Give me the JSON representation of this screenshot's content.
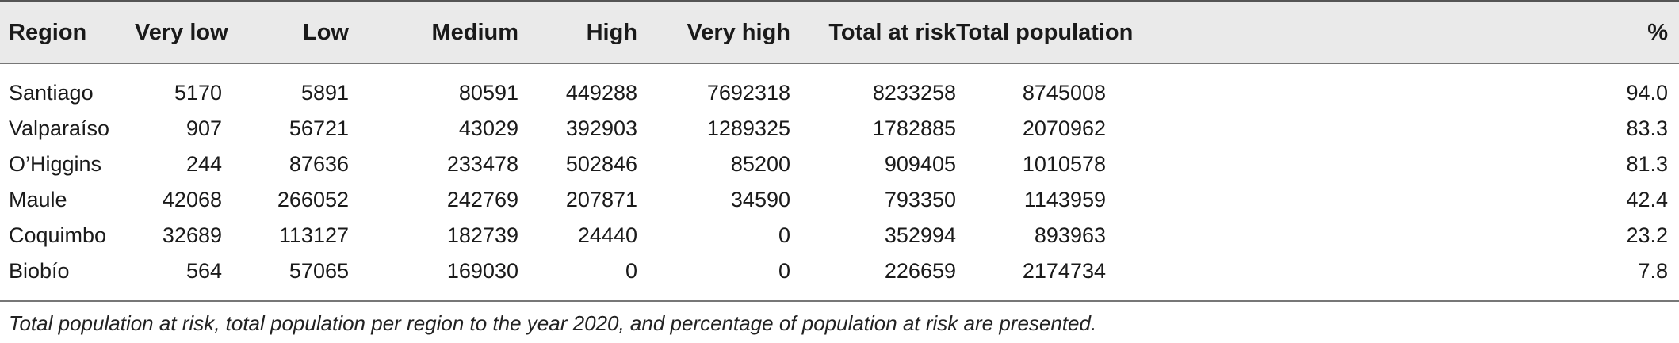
{
  "table": {
    "headers": [
      "Region",
      "Very low",
      "Low",
      "Medium",
      "High",
      "Very high",
      "Total at risk",
      "Total population",
      "%"
    ],
    "rows": [
      [
        "Santiago",
        "5170",
        "5891",
        "80591",
        "449288",
        "7692318",
        "8233258",
        "8745008",
        "94.0"
      ],
      [
        "Valparaíso",
        "907",
        "56721",
        "43029",
        "392903",
        "1289325",
        "1782885",
        "2070962",
        "83.3"
      ],
      [
        "O’Higgins",
        "244",
        "87636",
        "233478",
        "502846",
        "85200",
        "909405",
        "1010578",
        "81.3"
      ],
      [
        "Maule",
        "42068",
        "266052",
        "242769",
        "207871",
        "34590",
        "793350",
        "1143959",
        "42.4"
      ],
      [
        "Coquimbo",
        "32689",
        "113127",
        "182739",
        "24440",
        "0",
        "352994",
        "893963",
        "23.2"
      ],
      [
        "Biobío",
        "564",
        "57065",
        "169030",
        "0",
        "0",
        "226659",
        "2174734",
        "7.8"
      ]
    ]
  },
  "footnote": "Total population at risk, total population per region to the year 2020, and percentage of population at risk are presented."
}
